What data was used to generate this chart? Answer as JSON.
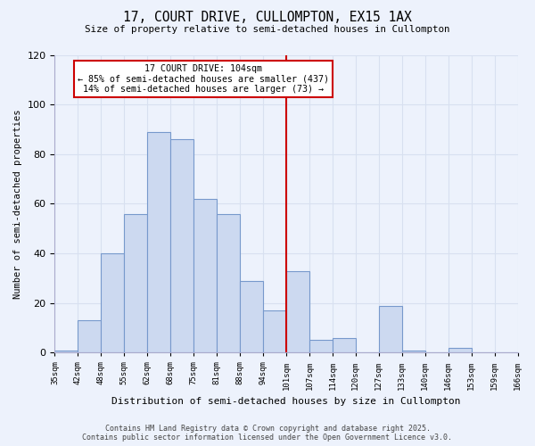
{
  "title": "17, COURT DRIVE, CULLOMPTON, EX15 1AX",
  "subtitle": "Size of property relative to semi-detached houses in Cullompton",
  "xlabel": "Distribution of semi-detached houses by size in Cullompton",
  "ylabel": "Number of semi-detached properties",
  "footer1": "Contains HM Land Registry data © Crown copyright and database right 2025.",
  "footer2": "Contains public sector information licensed under the Open Government Licence v3.0.",
  "bin_labels": [
    "35sqm",
    "42sqm",
    "48sqm",
    "55sqm",
    "62sqm",
    "68sqm",
    "75sqm",
    "81sqm",
    "88sqm",
    "94sqm",
    "101sqm",
    "107sqm",
    "114sqm",
    "120sqm",
    "127sqm",
    "133sqm",
    "140sqm",
    "146sqm",
    "153sqm",
    "159sqm",
    "166sqm"
  ],
  "bin_values": [
    1,
    13,
    40,
    56,
    89,
    86,
    62,
    56,
    29,
    17,
    33,
    5,
    6,
    0,
    19,
    1,
    0,
    2,
    0,
    0
  ],
  "bar_color": "#ccd9f0",
  "bar_edge_color": "#7799cc",
  "background_color": "#edf2fc",
  "grid_color": "#d8e0f0",
  "vline_color": "#cc0000",
  "vline_label_index": 10,
  "annotation_title": "17 COURT DRIVE: 104sqm",
  "annotation_line1": "← 85% of semi-detached houses are smaller (437)",
  "annotation_line2": "14% of semi-detached houses are larger (73) →",
  "annotation_box_facecolor": "#ffffff",
  "annotation_box_edgecolor": "#cc0000",
  "ylim": [
    0,
    120
  ],
  "yticks": [
    0,
    20,
    40,
    60,
    80,
    100,
    120
  ]
}
